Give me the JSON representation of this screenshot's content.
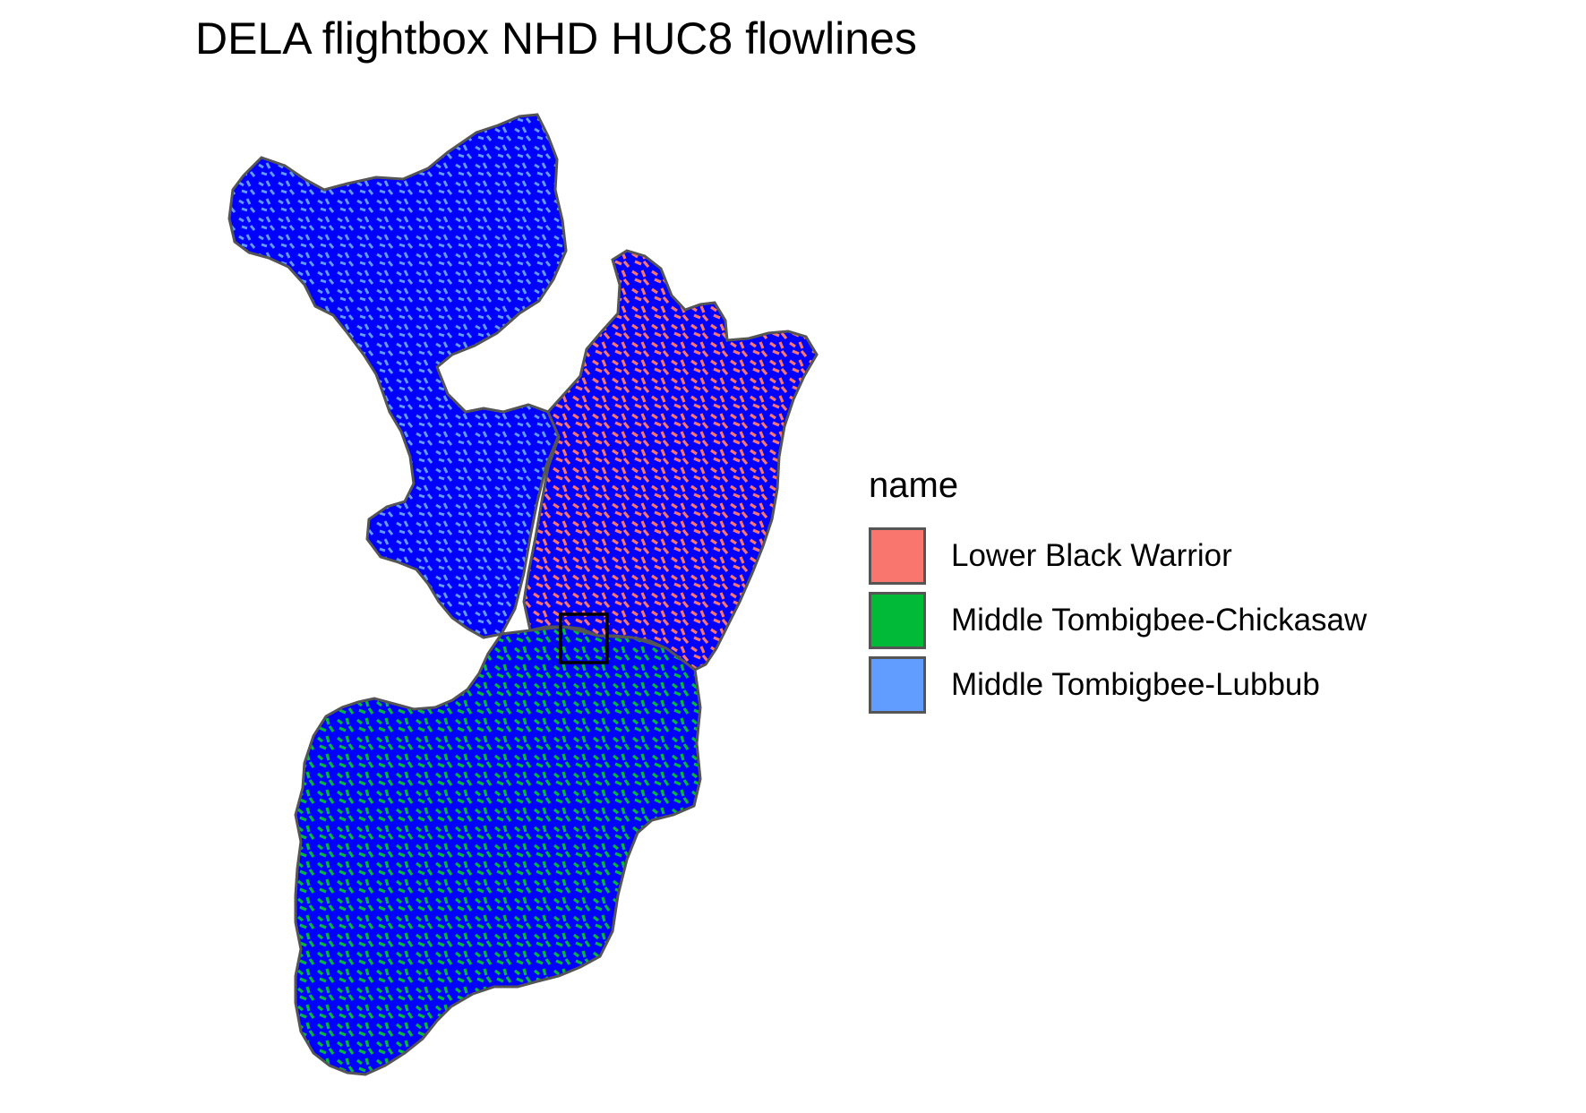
{
  "title": "DELA flightbox NHD HUC8 flowlines",
  "legend": {
    "title": "name",
    "items": [
      {
        "label": "Lower Black Warrior",
        "color": "#F8766D"
      },
      {
        "label": "Middle Tombigbee-Chickasaw",
        "color": "#00BA38"
      },
      {
        "label": "Middle Tombigbee-Lubbub",
        "color": "#619CFF"
      }
    ]
  },
  "colors": {
    "flowline": "#0000FF",
    "boundary": "#555555",
    "flightbox": "#000000"
  }
}
